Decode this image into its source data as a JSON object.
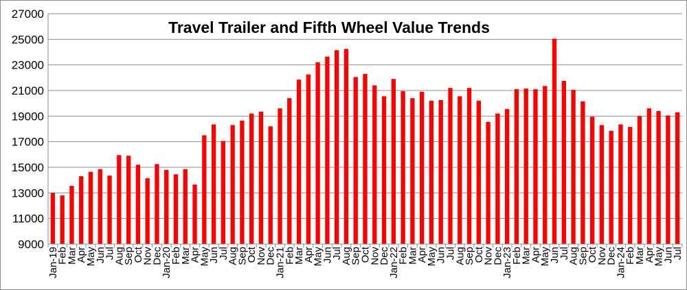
{
  "chart_data": {
    "type": "bar",
    "title": "Travel Trailer and Fifth Wheel Value Trends",
    "xlabel": "",
    "ylabel": "",
    "ylim": [
      9000,
      27000
    ],
    "yticks": [
      9000,
      11000,
      13000,
      15000,
      17000,
      19000,
      21000,
      23000,
      25000,
      27000
    ],
    "grid": true,
    "legend": "none",
    "bar_color": "#ff0000",
    "categories": [
      "Jan-19",
      "Feb",
      "Mar",
      "Apr",
      "May",
      "Jun",
      "Jul",
      "Aug",
      "Sep",
      "Oct",
      "Nov",
      "Dec",
      "Jan-20",
      "Feb",
      "Mar",
      "Apr",
      "May",
      "Jun",
      "Jul",
      "Aug",
      "Sep",
      "Oct",
      "Nov",
      "Dec",
      "Jan-21",
      "Feb",
      "Mar",
      "Apr",
      "May",
      "Jun",
      "Jul",
      "Aug",
      "Sep",
      "Oct",
      "Nov",
      "Dec",
      "Jan-22",
      "Feb",
      "Mar",
      "Apr",
      "May",
      "Jun",
      "Jul",
      "Aug",
      "Sep",
      "Oct",
      "Nov",
      "Dec",
      "Jan-23",
      "Feb",
      "Mar",
      "Apr",
      "May",
      "Jun",
      "Jul",
      "Aug",
      "Sep",
      "Oct",
      "Nov",
      "Dec",
      "Jan-24",
      "Feb",
      "Mar",
      "Apr",
      "May",
      "Jun",
      "Jul"
    ],
    "values": [
      13000,
      12800,
      13550,
      14300,
      14650,
      14850,
      14350,
      15950,
      15900,
      15200,
      14150,
      15250,
      14800,
      14450,
      14850,
      13650,
      17500,
      18350,
      17050,
      18300,
      18650,
      19200,
      19350,
      18200,
      19600,
      20400,
      21850,
      22250,
      23200,
      23650,
      24150,
      24250,
      22050,
      22300,
      21400,
      20550,
      21900,
      20950,
      20400,
      20900,
      20200,
      20250,
      21200,
      20550,
      21200,
      20200,
      18550,
      19200,
      19550,
      21100,
      21150,
      21100,
      21350,
      25050,
      21750,
      21050,
      20150,
      18950,
      18300,
      17850,
      18350,
      18150,
      19000,
      19600,
      19400,
      19050,
      19300
    ]
  }
}
